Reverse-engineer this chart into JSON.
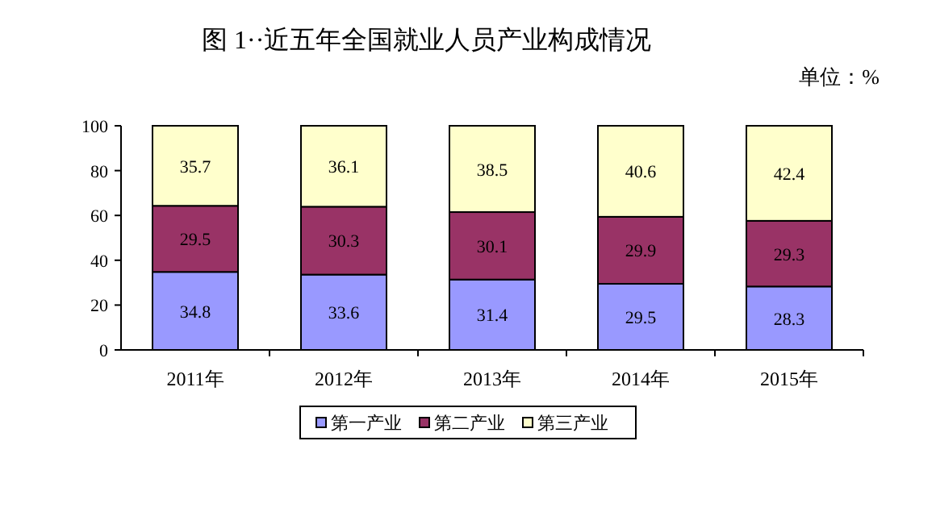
{
  "chart_data": {
    "type": "bar",
    "title": "图 1··近五年全国就业人员产业构成情况",
    "annotations": [
      "单位：%"
    ],
    "categories": [
      "2011年",
      "2012年",
      "2013年",
      "2014年",
      "2015年"
    ],
    "stacked": true,
    "data_labels": true,
    "ylim": [
      0,
      100
    ],
    "yticks": [
      0,
      20,
      40,
      60,
      80,
      100
    ],
    "grid": false,
    "legend": "bottom",
    "series": [
      {
        "name": "第一产业",
        "color": "#9999ff",
        "values": [
          34.8,
          33.6,
          31.4,
          29.5,
          28.3
        ]
      },
      {
        "name": "第二产业",
        "color": "#993366",
        "values": [
          29.5,
          30.3,
          30.1,
          29.9,
          29.3
        ]
      },
      {
        "name": "第三产业",
        "color": "#ffffcc",
        "values": [
          35.7,
          36.1,
          38.5,
          40.6,
          42.4
        ]
      }
    ]
  }
}
